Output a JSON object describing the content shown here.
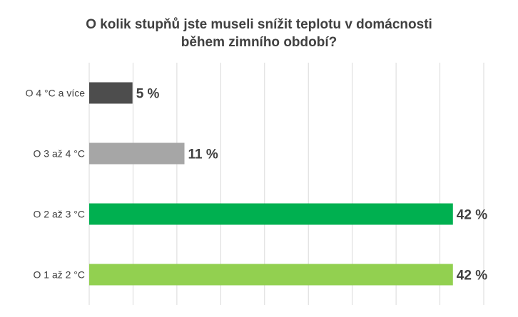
{
  "chart_data": {
    "type": "bar",
    "orientation": "horizontal",
    "title_line1": "O kolik stupňů jste museli snížit teplotu v domácnosti",
    "title_line2": "během zimního období?",
    "categories": [
      "O 4 °C a více",
      "O 3 až 4 °C",
      "O 2 až 3 °C",
      "O 1 až 2 °C"
    ],
    "values": [
      5,
      11,
      42,
      42
    ],
    "value_labels": [
      "5 %",
      "11 %",
      "42 %",
      "42 %"
    ],
    "colors": [
      "#4d4d4d",
      "#a6a6a6",
      "#00b050",
      "#92d050"
    ],
    "xlim": [
      0,
      45
    ],
    "grid": true,
    "legend": "none"
  }
}
